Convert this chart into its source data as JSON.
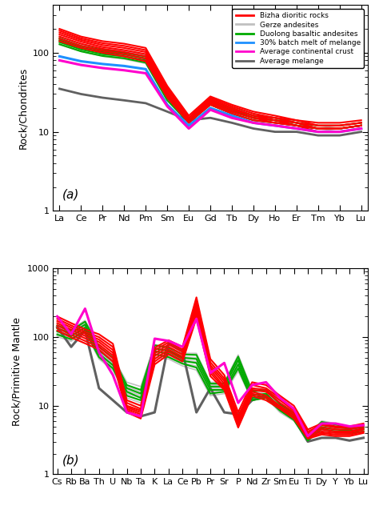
{
  "panel_a_elements": [
    "La",
    "Ce",
    "Pr",
    "Nd",
    "Pm",
    "Sm",
    "Eu",
    "Gd",
    "Tb",
    "Dy",
    "Ho",
    "Er",
    "Tm",
    "Yb",
    "Lu"
  ],
  "panel_b_elements": [
    "Cs",
    "Rb",
    "Ba",
    "Th",
    "U",
    "Nb",
    "Ta",
    "K",
    "La",
    "Ce",
    "Pb",
    "Pr",
    "Sr",
    "P",
    "Nd",
    "Zr",
    "Sm",
    "Eu",
    "Ti",
    "Dy",
    "Y",
    "Yb",
    "Lu"
  ],
  "bizha_dioritic": [
    [
      200,
      160,
      140,
      130,
      115,
      38,
      16,
      28,
      22,
      18,
      16,
      14,
      13,
      13,
      14
    ],
    [
      190,
      152,
      132,
      122,
      108,
      36,
      15,
      27,
      21,
      17,
      15,
      14,
      12,
      12,
      13
    ],
    [
      180,
      145,
      125,
      115,
      102,
      34,
      15,
      26,
      20,
      16,
      15,
      13,
      12,
      12,
      13
    ],
    [
      170,
      138,
      118,
      108,
      96,
      32,
      14,
      25,
      19,
      16,
      14,
      13,
      11,
      11,
      12
    ],
    [
      160,
      130,
      112,
      102,
      90,
      30,
      14,
      24,
      18,
      15,
      14,
      12,
      11,
      11,
      12
    ],
    [
      150,
      122,
      106,
      96,
      84,
      28,
      13,
      23,
      18,
      15,
      13,
      12,
      11,
      11,
      12
    ],
    [
      140,
      115,
      100,
      90,
      78,
      27,
      13,
      22,
      17,
      14,
      13,
      12,
      10,
      10,
      11
    ]
  ],
  "gerze_andesites": [
    [
      160,
      128,
      112,
      105,
      94,
      32,
      15,
      26,
      21,
      17,
      15,
      14,
      12,
      12,
      13
    ],
    [
      150,
      120,
      105,
      98,
      88,
      30,
      14,
      25,
      20,
      16,
      15,
      13,
      12,
      11,
      12
    ],
    [
      142,
      115,
      100,
      93,
      83,
      28,
      14,
      24,
      19,
      16,
      14,
      13,
      11,
      11,
      12
    ],
    [
      134,
      109,
      95,
      88,
      78,
      27,
      13,
      23,
      18,
      15,
      14,
      12,
      11,
      10,
      11
    ],
    [
      126,
      104,
      90,
      83,
      73,
      25,
      13,
      22,
      17,
      14,
      13,
      12,
      10,
      10,
      11
    ]
  ],
  "duolong_basaltic": [
    [
      152,
      122,
      108,
      100,
      90,
      30,
      14,
      25,
      20,
      16,
      15,
      13,
      12,
      12,
      13
    ],
    [
      144,
      116,
      102,
      95,
      85,
      28,
      14,
      24,
      19,
      15,
      14,
      13,
      11,
      11,
      12
    ],
    [
      136,
      110,
      96,
      90,
      80,
      27,
      13,
      23,
      18,
      15,
      14,
      12,
      11,
      11,
      12
    ],
    [
      128,
      104,
      91,
      85,
      75,
      25,
      13,
      22,
      17,
      14,
      13,
      12,
      11,
      11,
      12
    ]
  ],
  "batch_melt": [
    90,
    78,
    72,
    68,
    62,
    22,
    12,
    20,
    16,
    13,
    12,
    11,
    10,
    10,
    11
  ],
  "avg_continental_crust": [
    80,
    70,
    64,
    60,
    55,
    21,
    11,
    19,
    15,
    13,
    12,
    11,
    10,
    10,
    11
  ],
  "avg_melange": [
    35,
    30,
    27,
    25,
    23,
    18,
    14,
    15,
    13,
    11,
    10,
    10,
    9,
    9,
    10
  ],
  "bizha_b": [
    [
      200,
      160,
      130,
      110,
      80,
      12,
      10,
      70,
      90,
      72,
      380,
      48,
      28,
      8,
      22,
      20,
      14,
      10,
      4.5,
      5.5,
      5.0,
      5.0,
      5.5
    ],
    [
      185,
      148,
      120,
      100,
      72,
      11,
      9,
      64,
      84,
      66,
      340,
      43,
      25,
      7,
      20,
      18,
      13,
      9,
      4.2,
      5.2,
      4.8,
      4.8,
      5.2
    ],
    [
      172,
      138,
      112,
      92,
      65,
      10,
      8.5,
      58,
      78,
      61,
      305,
      39,
      23,
      6.5,
      18,
      17,
      12,
      8.5,
      4.0,
      4.8,
      4.5,
      4.5,
      5.0
    ],
    [
      160,
      128,
      104,
      85,
      59,
      9.5,
      8,
      53,
      72,
      56,
      272,
      36,
      21,
      6,
      17,
      16,
      11,
      8,
      3.8,
      4.5,
      4.2,
      4.2,
      4.7
    ],
    [
      148,
      118,
      96,
      78,
      54,
      9,
      7.5,
      48,
      66,
      52,
      242,
      33,
      19,
      5.5,
      16,
      14,
      10,
      7.5,
      3.6,
      4.2,
      4.0,
      4.0,
      4.5
    ],
    [
      136,
      108,
      88,
      72,
      49,
      8.5,
      7,
      44,
      61,
      48,
      215,
      30,
      18,
      5,
      15,
      13,
      9.5,
      7,
      3.4,
      4.0,
      3.8,
      3.8,
      4.2
    ],
    [
      125,
      99,
      81,
      66,
      44,
      8,
      6.5,
      40,
      56,
      44,
      190,
      27,
      17,
      4.8,
      14,
      12,
      9,
      6.5,
      3.3,
      3.8,
      3.6,
      3.6,
      4.0
    ]
  ],
  "gerze_b": [
    [
      155,
      130,
      175,
      75,
      52,
      22,
      19,
      78,
      72,
      58,
      58,
      22,
      22,
      55,
      17,
      18,
      11,
      8,
      3.8,
      6.0,
      5.5,
      5.0,
      5.2
    ],
    [
      140,
      118,
      158,
      67,
      46,
      19,
      16,
      70,
      65,
      52,
      50,
      20,
      20,
      48,
      15,
      16,
      10,
      7.5,
      3.6,
      5.6,
      5.0,
      4.7,
      4.9
    ],
    [
      126,
      107,
      143,
      60,
      41,
      17,
      14,
      63,
      59,
      47,
      44,
      18,
      18,
      42,
      14,
      15,
      9,
      7,
      3.4,
      5.2,
      4.7,
      4.4,
      4.6
    ],
    [
      113,
      97,
      129,
      54,
      37,
      15,
      13,
      57,
      53,
      42,
      38,
      16,
      16,
      37,
      13,
      14,
      8.5,
      6.5,
      3.2,
      4.8,
      4.3,
      4.1,
      4.3
    ],
    [
      102,
      87,
      117,
      48,
      33,
      13,
      11,
      51,
      48,
      38,
      33,
      14,
      15,
      32,
      12,
      13,
      8,
      6,
      3.1,
      4.4,
      4.0,
      3.8,
      4.0
    ]
  ],
  "duolong_b": [
    [
      148,
      125,
      168,
      72,
      50,
      20,
      17,
      76,
      70,
      56,
      55,
      21,
      21,
      52,
      16,
      17,
      10.5,
      7.8,
      3.7,
      5.8,
      5.3,
      4.9,
      5.1
    ],
    [
      134,
      114,
      152,
      64,
      44,
      18,
      15,
      68,
      63,
      50,
      48,
      19,
      19,
      46,
      14,
      15,
      9.5,
      7.2,
      3.5,
      5.3,
      4.9,
      4.6,
      4.8
    ],
    [
      121,
      103,
      138,
      57,
      39,
      16,
      13,
      62,
      57,
      45,
      42,
      17,
      17,
      40,
      13,
      14,
      9,
      6.7,
      3.3,
      4.9,
      4.5,
      4.3,
      4.5
    ],
    [
      109,
      93,
      124,
      51,
      35,
      14,
      12,
      56,
      51,
      41,
      36,
      15,
      16,
      35,
      12,
      13,
      8.5,
      6.2,
      3.1,
      4.6,
      4.2,
      4.0,
      4.2
    ]
  ],
  "avg_continental_b": [
    200,
    110,
    260,
    60,
    28,
    8,
    7,
    95,
    88,
    72,
    185,
    30,
    42,
    11,
    20,
    22,
    13,
    9,
    3.6,
    5.5,
    5.5,
    5.0,
    5.2
  ],
  "avg_melange_b": [
    140,
    72,
    125,
    18,
    12,
    8,
    7,
    8,
    80,
    62,
    8,
    18,
    8,
    7.5,
    12,
    14,
    9,
    6.5,
    3.0,
    3.4,
    3.4,
    3.1,
    3.4
  ],
  "colors": {
    "bizha": "#ff0000",
    "gerze": "#c0c0c0",
    "duolong": "#00aa00",
    "batch_melt": "#1e90ff",
    "avg_crust": "#ff00cc",
    "avg_melange": "#606060"
  },
  "ylabel_a": "Rock/Chondrites",
  "ylabel_b": "Rock/Primitive Mantle",
  "label_a": "(a)",
  "label_b": "(b)",
  "ylim_a": [
    1,
    400
  ],
  "ylim_b": [
    1,
    1000
  ],
  "legend_labels": [
    "Bizha dioritic rocks",
    "Gerze andesites",
    "Duolong basaltic andesites",
    "30% batch melt of melange",
    "Average continental crust",
    "Average melange"
  ]
}
